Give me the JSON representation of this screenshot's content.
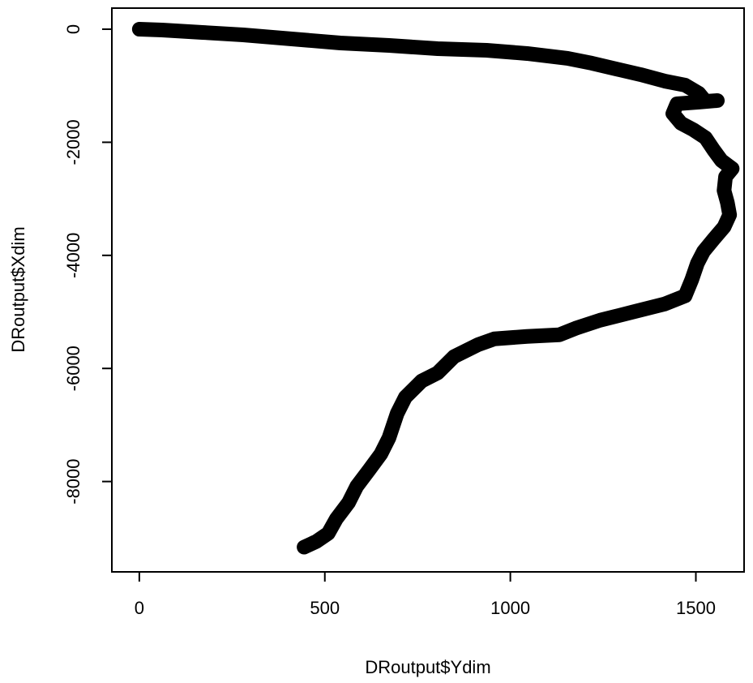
{
  "chart_data": {
    "type": "line",
    "xlabel": "DRoutput$Ydim",
    "ylabel": "DRoutput$Xdim",
    "x": [
      0,
      61,
      170,
      280,
      411,
      542,
      673,
      804,
      936,
      1045,
      1154,
      1220,
      1285,
      1351,
      1416,
      1471,
      1508,
      1526,
      1558,
      1508,
      1449,
      1438,
      1460,
      1493,
      1526,
      1548,
      1569,
      1598,
      1580,
      1576,
      1585,
      1591,
      1576,
      1548,
      1521,
      1504,
      1489,
      1471,
      1416,
      1329,
      1242,
      1176,
      1132,
      1045,
      957,
      914,
      848,
      804,
      761,
      717,
      695,
      673,
      651,
      619,
      586,
      564,
      531,
      509,
      477,
      444
    ],
    "values": [
      0,
      -14,
      -57,
      -100,
      -172,
      -244,
      -287,
      -344,
      -373,
      -430,
      -516,
      -602,
      -703,
      -803,
      -918,
      -989,
      -1133,
      -1276,
      -1262,
      -1290,
      -1319,
      -1491,
      -1663,
      -1778,
      -1921,
      -2136,
      -2323,
      -2466,
      -2609,
      -2853,
      -3068,
      -3283,
      -3498,
      -3713,
      -3928,
      -4143,
      -4430,
      -4717,
      -4860,
      -5004,
      -5147,
      -5290,
      -5405,
      -5434,
      -5477,
      -5577,
      -5792,
      -6079,
      -6222,
      -6509,
      -6796,
      -7226,
      -7513,
      -7799,
      -8086,
      -8373,
      -8660,
      -8918,
      -9061,
      -9161
    ],
    "color": "#000000",
    "xlim": [
      -74,
      1630
    ],
    "ylim": [
      -9598,
      373
    ],
    "xticks": [
      0,
      500,
      1000,
      1500
    ],
    "yticks": [
      0,
      -2000,
      -4000,
      -6000,
      -8000
    ]
  }
}
